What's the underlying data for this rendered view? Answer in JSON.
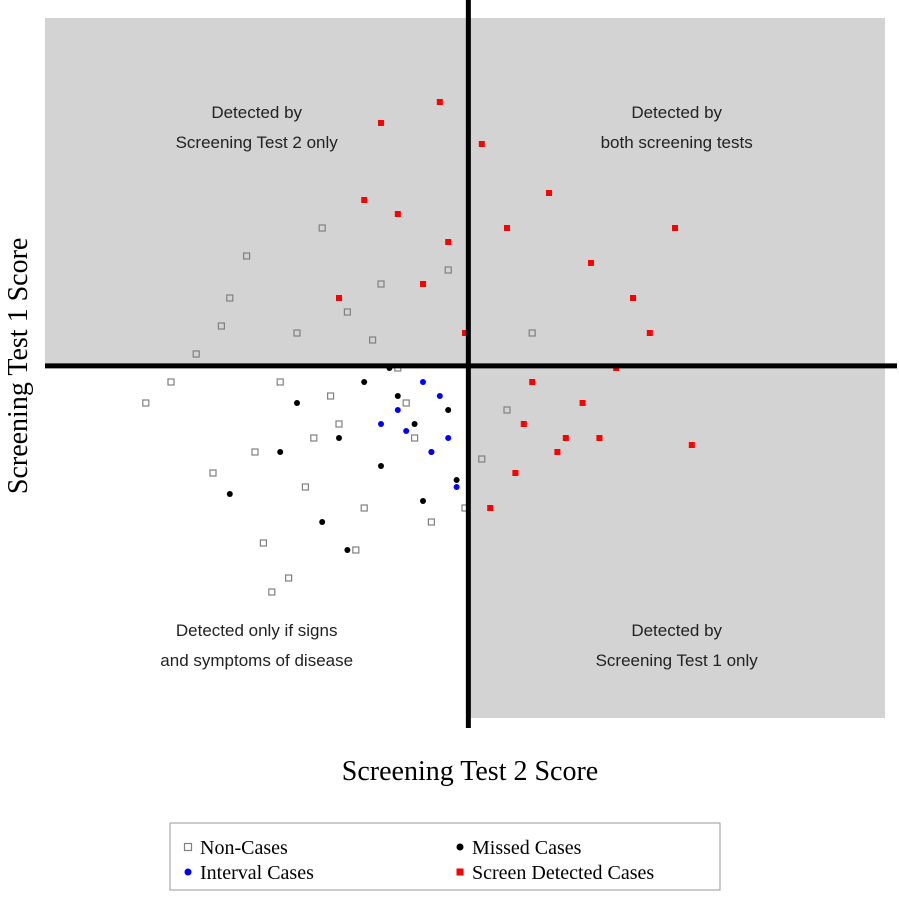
{
  "chart_data": {
    "type": "scatter",
    "x_label": "Screening Test 2 Score",
    "y_label": "Screening Test 1 Score",
    "xlim": [
      0,
      100
    ],
    "ylim": [
      0,
      100
    ],
    "thresholds": {
      "x": 50.4,
      "y": 50.3
    },
    "annotations": [
      {
        "lines": [
          "Detected by",
          "Screening Test 2 only"
        ]
      },
      {
        "lines": [
          "Detected by",
          "both screening tests"
        ]
      },
      {
        "lines": [
          "Detected only if signs",
          "and symptoms of disease"
        ]
      },
      {
        "lines": [
          "Detected by",
          "Screening Test 1 only"
        ]
      }
    ],
    "legend_position": "bottom",
    "series": [
      {
        "name": "Non-Cases",
        "color": "#808080",
        "marker": "open-square",
        "x": [
          12,
          18,
          22,
          25,
          28,
          30,
          33,
          35,
          38,
          40,
          42,
          20,
          26,
          31,
          36,
          44,
          15,
          24,
          29,
          34,
          39,
          46,
          48,
          52,
          55,
          58,
          27,
          37,
          43,
          50,
          21,
          32
        ],
        "y": [
          45,
          52,
          60,
          38,
          48,
          55,
          70,
          42,
          30,
          62,
          50,
          35,
          25,
          33,
          58,
          40,
          48,
          66,
          20,
          46,
          54,
          28,
          64,
          37,
          44,
          55,
          18,
          24,
          45,
          30,
          56,
          40
        ]
      },
      {
        "name": "Missed Cases",
        "color": "#000000",
        "marker": "filled-circle",
        "x": [
          22,
          30,
          35,
          38,
          42,
          44,
          46,
          48,
          40,
          33,
          28,
          45,
          36,
          49,
          41
        ],
        "y": [
          32,
          45,
          40,
          48,
          46,
          42,
          38,
          44,
          36,
          28,
          38,
          31,
          24,
          34,
          50
        ]
      },
      {
        "name": "Interval Cases",
        "color": "#0000ff",
        "marker": "filled-circle",
        "x": [
          45,
          47,
          42,
          40,
          48,
          46,
          49,
          43
        ],
        "y": [
          48,
          46,
          44,
          42,
          40,
          38,
          33,
          41
        ]
      },
      {
        "name": "Screen Detected Cases",
        "color": "#ff0000",
        "marker": "filled-square",
        "x": [
          40,
          47,
          52,
          55,
          60,
          65,
          70,
          75,
          45,
          50,
          58,
          62,
          68,
          35,
          42,
          56,
          64,
          72,
          53,
          57,
          61,
          48,
          66,
          38,
          77
        ],
        "y": [
          85,
          88,
          82,
          70,
          75,
          65,
          60,
          70,
          62,
          55,
          48,
          40,
          50,
          60,
          72,
          35,
          45,
          55,
          30,
          42,
          38,
          68,
          40,
          74,
          39
        ]
      }
    ]
  }
}
